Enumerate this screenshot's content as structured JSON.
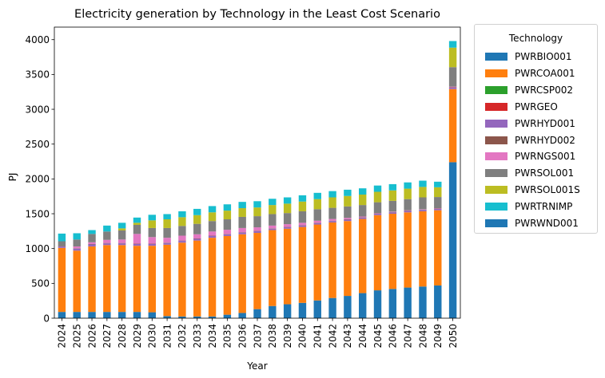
{
  "chart_data": {
    "type": "bar",
    "stacked": true,
    "title": "Electricity generation by Technology in the Least Cost Scenario",
    "xlabel": "Year",
    "ylabel": "PJ",
    "ylim": [
      0,
      4180
    ],
    "yticks": [
      0,
      500,
      1000,
      1500,
      2000,
      2500,
      3000,
      3500,
      4000
    ],
    "legend_title": "Technology",
    "legend_placement": "outside-right",
    "categories": [
      "2024",
      "2025",
      "2026",
      "2027",
      "2028",
      "2029",
      "2030",
      "2031",
      "2032",
      "2033",
      "2034",
      "2035",
      "2036",
      "2037",
      "2038",
      "2039",
      "2040",
      "2041",
      "2042",
      "2043",
      "2044",
      "2045",
      "2046",
      "2047",
      "2048",
      "2049",
      "2050"
    ],
    "series": [
      {
        "name": "PWRBIO001",
        "color": "#1f77b4",
        "values": [
          90,
          90,
          90,
          90,
          90,
          90,
          85,
          30,
          25,
          25,
          25,
          50,
          75,
          130,
          175,
          200,
          220,
          255,
          290,
          320,
          360,
          400,
          420,
          440,
          455,
          470,
          2240
        ]
      },
      {
        "name": "PWRCOA001",
        "color": "#ff7f0e",
        "values": [
          920,
          880,
          940,
          960,
          960,
          950,
          955,
          1025,
          1060,
          1090,
          1130,
          1130,
          1130,
          1095,
          1090,
          1085,
          1090,
          1090,
          1085,
          1075,
          1065,
          1080,
          1080,
          1080,
          1080,
          1080,
          1050
        ]
      },
      {
        "name": "PWRCSP002",
        "color": "#2ca02c",
        "values": [
          0,
          0,
          0,
          0,
          0,
          0,
          0,
          0,
          0,
          0,
          0,
          0,
          0,
          0,
          0,
          0,
          0,
          0,
          0,
          0,
          0,
          0,
          0,
          0,
          0,
          0,
          0
        ]
      },
      {
        "name": "PWRGEO",
        "color": "#d62728",
        "values": [
          0,
          0,
          0,
          0,
          0,
          0,
          0,
          0,
          0,
          0,
          0,
          0,
          0,
          0,
          0,
          0,
          0,
          0,
          0,
          0,
          0,
          0,
          0,
          0,
          0,
          0,
          0
        ]
      },
      {
        "name": "PWRHYD001",
        "color": "#9467bd",
        "values": [
          20,
          30,
          30,
          25,
          25,
          25,
          25,
          25,
          25,
          25,
          25,
          25,
          25,
          25,
          20,
          20,
          20,
          20,
          20,
          20,
          20,
          20,
          20,
          20,
          20,
          20,
          20
        ]
      },
      {
        "name": "PWRHYD002",
        "color": "#8c564b",
        "values": [
          5,
          5,
          5,
          5,
          5,
          5,
          5,
          5,
          5,
          5,
          5,
          5,
          5,
          5,
          5,
          5,
          5,
          5,
          5,
          5,
          5,
          5,
          5,
          5,
          5,
          5,
          5
        ]
      },
      {
        "name": "PWRNGS001",
        "color": "#e377c2",
        "values": [
          0,
          25,
          25,
          45,
          50,
          140,
          95,
          70,
          70,
          60,
          60,
          60,
          60,
          50,
          40,
          40,
          35,
          30,
          25,
          20,
          10,
          5,
          5,
          5,
          5,
          5,
          10
        ]
      },
      {
        "name": "PWRSOL001",
        "color": "#7f7f7f",
        "values": [
          70,
          100,
          120,
          120,
          130,
          130,
          130,
          140,
          140,
          150,
          150,
          150,
          160,
          160,
          165,
          160,
          165,
          165,
          160,
          165,
          165,
          155,
          155,
          160,
          170,
          160,
          280
        ]
      },
      {
        "name": "PWRSOL001S",
        "color": "#bcbd22",
        "values": [
          0,
          0,
          0,
          0,
          30,
          30,
          110,
          125,
          125,
          125,
          125,
          125,
          125,
          125,
          130,
          135,
          140,
          145,
          150,
          150,
          150,
          150,
          150,
          150,
          150,
          140,
          280
        ]
      },
      {
        "name": "PWRTRNIMP",
        "color": "#17becf",
        "values": [
          110,
          90,
          55,
          85,
          80,
          75,
          80,
          75,
          85,
          90,
          90,
          90,
          90,
          90,
          90,
          90,
          90,
          90,
          90,
          90,
          90,
          90,
          90,
          90,
          90,
          80,
          95
        ]
      },
      {
        "name": "PWRWND001",
        "color": "#1f77b4",
        "values": [
          0,
          0,
          0,
          0,
          0,
          0,
          0,
          0,
          0,
          0,
          0,
          0,
          0,
          0,
          0,
          0,
          0,
          0,
          0,
          0,
          0,
          0,
          0,
          0,
          0,
          0,
          0
        ]
      }
    ]
  }
}
